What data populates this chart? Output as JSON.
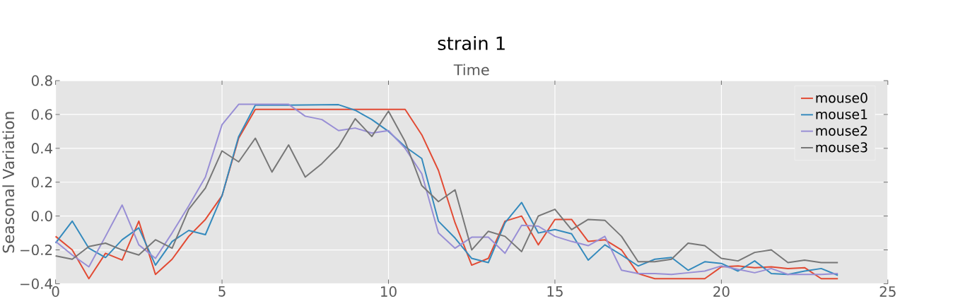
{
  "chart_data": {
    "type": "line",
    "title": "strain 1",
    "xlabel": "Time",
    "ylabel": "Seasonal Variation",
    "x": [
      0,
      0.5,
      1,
      1.5,
      2,
      2.5,
      3,
      3.5,
      4,
      4.5,
      5,
      5.5,
      6,
      6.5,
      7,
      7.5,
      8,
      8.5,
      9,
      9.5,
      10,
      10.5,
      11,
      11.5,
      12,
      12.5,
      13,
      13.5,
      14,
      14.5,
      15,
      15.5,
      16,
      16.5,
      17,
      17.5,
      18,
      18.5,
      19,
      19.5,
      20,
      20.5,
      21,
      21.5,
      22,
      22.5,
      23,
      23.5
    ],
    "series": [
      {
        "name": "mouse0",
        "color": "#e24a33",
        "values": [
          -0.12,
          -0.2,
          -0.37,
          -0.22,
          -0.26,
          -0.03,
          -0.345,
          -0.255,
          -0.12,
          -0.02,
          0.12,
          0.46,
          0.63,
          0.63,
          0.63,
          0.63,
          0.63,
          0.63,
          0.63,
          0.63,
          0.63,
          0.63,
          0.48,
          0.27,
          -0.04,
          -0.29,
          -0.25,
          -0.03,
          0.0,
          -0.17,
          -0.02,
          -0.02,
          -0.15,
          -0.14,
          -0.2,
          -0.34,
          -0.37,
          -0.37,
          -0.37,
          -0.37,
          -0.3,
          -0.295,
          -0.305,
          -0.3,
          -0.31,
          -0.305,
          -0.37,
          -0.37
        ]
      },
      {
        "name": "mouse1",
        "color": "#348abd",
        "values": [
          -0.16,
          -0.03,
          -0.19,
          -0.245,
          -0.14,
          -0.07,
          -0.29,
          -0.15,
          -0.085,
          -0.11,
          0.12,
          0.47,
          0.655,
          0.655,
          0.655,
          0.656,
          0.657,
          0.658,
          0.625,
          0.57,
          0.5,
          0.41,
          0.34,
          -0.03,
          -0.13,
          -0.25,
          -0.275,
          -0.04,
          0.08,
          -0.1,
          -0.08,
          -0.105,
          -0.26,
          -0.17,
          -0.23,
          -0.295,
          -0.255,
          -0.245,
          -0.32,
          -0.27,
          -0.28,
          -0.325,
          -0.265,
          -0.34,
          -0.345,
          -0.325,
          -0.31,
          -0.35
        ]
      },
      {
        "name": "mouse2",
        "color": "#988ed5",
        "values": [
          -0.15,
          -0.23,
          -0.3,
          -0.12,
          0.065,
          -0.17,
          -0.25,
          -0.1,
          0.06,
          0.23,
          0.54,
          0.66,
          0.66,
          0.66,
          0.66,
          0.59,
          0.57,
          0.505,
          0.52,
          0.49,
          0.505,
          0.4,
          0.25,
          -0.1,
          -0.19,
          -0.125,
          -0.125,
          -0.22,
          -0.055,
          -0.06,
          -0.12,
          -0.15,
          -0.175,
          -0.12,
          -0.32,
          -0.34,
          -0.34,
          -0.345,
          -0.335,
          -0.325,
          -0.295,
          -0.315,
          -0.335,
          -0.31,
          -0.345,
          -0.345,
          -0.345,
          -0.34
        ]
      },
      {
        "name": "mouse3",
        "color": "#777777",
        "values": [
          -0.235,
          -0.255,
          -0.18,
          -0.16,
          -0.2,
          -0.23,
          -0.14,
          -0.19,
          0.04,
          0.165,
          0.385,
          0.32,
          0.46,
          0.26,
          0.42,
          0.23,
          0.31,
          0.41,
          0.575,
          0.47,
          0.62,
          0.44,
          0.18,
          0.085,
          0.155,
          -0.2,
          -0.09,
          -0.12,
          -0.21,
          0.0,
          0.04,
          -0.08,
          -0.02,
          -0.025,
          -0.12,
          -0.27,
          -0.27,
          -0.255,
          -0.16,
          -0.175,
          -0.25,
          -0.265,
          -0.215,
          -0.2,
          -0.275,
          -0.26,
          -0.275,
          -0.275
        ]
      }
    ],
    "xlim": [
      0,
      25
    ],
    "xticks": [
      0,
      5,
      10,
      15,
      20,
      25
    ],
    "ylim": [
      -0.4,
      0.8
    ],
    "yticks": [
      {
        "value": -0.4,
        "label": "−0.4"
      },
      {
        "value": -0.2,
        "label": "−0.2"
      },
      {
        "value": 0,
        "label": "0.0"
      },
      {
        "value": 0.2,
        "label": "0.2"
      },
      {
        "value": 0.4,
        "label": "0.4"
      },
      {
        "value": 0.6,
        "label": "0.6"
      },
      {
        "value": 0.8,
        "label": "0.8"
      }
    ],
    "grid": true,
    "legend": "top right",
    "line_style": "solid",
    "marker": "none"
  }
}
